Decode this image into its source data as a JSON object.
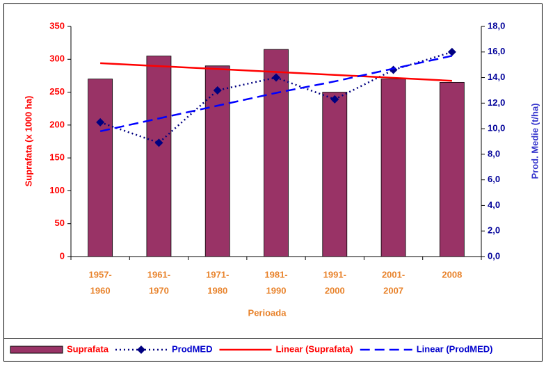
{
  "chart_data": {
    "type": "bar",
    "x_label": "Perioada",
    "y_label": "Suprafata (x 1000 ha)",
    "y2_label": "Prod. Medie (t/ha)",
    "categories": [
      [
        "1957-",
        "1960"
      ],
      [
        "1961-",
        "1970"
      ],
      [
        "1971-",
        "1980"
      ],
      [
        "1981-",
        "1990"
      ],
      [
        "1991-",
        "2000"
      ],
      [
        "2001-",
        "2007"
      ],
      [
        "2008"
      ]
    ],
    "series": [
      {
        "name": "Suprafata",
        "type": "bar",
        "color": "#993366",
        "values": [
          270,
          305,
          290,
          315,
          250,
          270,
          265
        ]
      },
      {
        "name": "ProdMED",
        "type": "line",
        "axis": "y2",
        "color": "#000080",
        "dash": "2,4",
        "marker": "diamond",
        "values": [
          10.5,
          8.9,
          13.0,
          14.0,
          12.3,
          14.6,
          16.0
        ]
      },
      {
        "name": "Linear (Suprafata)",
        "type": "line",
        "color": "#ff0000",
        "values": [
          294.1,
          289.6,
          285.2,
          280.7,
          276.3,
          271.8,
          267.3
        ]
      },
      {
        "name": "Linear (ProdMED)",
        "type": "line",
        "axis": "y2",
        "color": "#0000ff",
        "dash": "14,7",
        "values": [
          9.8,
          10.8,
          11.8,
          12.8,
          13.7,
          14.7,
          15.7
        ]
      }
    ],
    "ylim": [
      0,
      350
    ],
    "yticks": [
      0,
      50,
      100,
      150,
      200,
      250,
      300,
      350
    ],
    "y2lim": [
      0,
      18
    ],
    "y2ticks": [
      {
        "value": 0,
        "label": "0,0"
      },
      {
        "value": 2,
        "label": "2,0"
      },
      {
        "value": 4,
        "label": "4,0"
      },
      {
        "value": 6,
        "label": "6,0"
      },
      {
        "value": 8,
        "label": "8,0"
      },
      {
        "value": 10,
        "label": "10,0"
      },
      {
        "value": 12,
        "label": "12,0"
      },
      {
        "value": 14,
        "label": "14,0"
      },
      {
        "value": 16,
        "label": "16,0"
      },
      {
        "value": 18,
        "label": "18,0"
      }
    ],
    "legend": "bottom"
  }
}
